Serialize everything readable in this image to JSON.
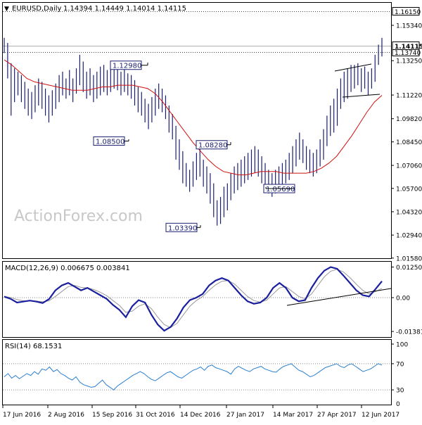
{
  "header": {
    "symbol_label": "EURUSD,Daily",
    "ohlc_text": "1.14394 1.14449 1.14014 1.14115"
  },
  "watermark": "ActionForex.com",
  "chart_data": [
    {
      "type": "line",
      "panel": "price",
      "title": "EURUSD,Daily",
      "subtitle": "1.14394 1.14449 1.14014 1.14115",
      "x_ticks": [
        "17 Jun 2016",
        "2 Aug 2016",
        "15 Sep 2016",
        "31 Oct 2016",
        "14 Dec 2016",
        "27 Jan 2017",
        "14 Mar 2017",
        "27 Apr 2017",
        "12 Jun 2017"
      ],
      "y_ticks": [
        "1.15340",
        "1.13250",
        "1.11220",
        "1.09820",
        "1.08450",
        "1.07060",
        "1.05700",
        "1.04320",
        "1.02940",
        "1.01580"
      ],
      "ylim": [
        1.0158,
        1.168
      ],
      "current_price": "1.14115",
      "horizontal_levels": [
        {
          "label": "1.16150",
          "value": 1.1615,
          "style": "dotted"
        },
        {
          "label": "1.13740",
          "value": 1.1374,
          "style": "dotted"
        }
      ],
      "annotations": [
        {
          "label": "1.12980",
          "value": 1.1298
        },
        {
          "label": "1.08500",
          "value": 1.085
        },
        {
          "label": "1.03390",
          "value": 1.0339
        },
        {
          "label": "1.08280",
          "value": 1.0828
        },
        {
          "label": "1.05690",
          "value": 1.0569
        }
      ],
      "series": [
        {
          "type": "bar",
          "color": "#1a1f6e",
          "bars": [
            [
              1.137,
              1.146
            ],
            [
              1.122,
              1.143
            ],
            [
              1.1,
              1.131
            ],
            [
              1.108,
              1.128
            ],
            [
              1.112,
              1.126
            ],
            [
              1.108,
              1.124
            ],
            [
              1.104,
              1.12
            ],
            [
              1.1,
              1.116
            ],
            [
              1.098,
              1.114
            ],
            [
              1.102,
              1.118
            ],
            [
              1.106,
              1.122
            ],
            [
              1.104,
              1.12
            ],
            [
              1.1,
              1.116
            ],
            [
              1.096,
              1.112
            ],
            [
              1.1,
              1.115
            ],
            [
              1.104,
              1.119
            ],
            [
              1.108,
              1.124
            ],
            [
              1.112,
              1.126
            ],
            [
              1.11,
              1.122
            ],
            [
              1.112,
              1.127
            ],
            [
              1.108,
              1.122
            ],
            [
              1.113,
              1.128
            ],
            [
              1.118,
              1.136
            ],
            [
              1.114,
              1.132
            ],
            [
              1.11,
              1.126
            ],
            [
              1.112,
              1.128
            ],
            [
              1.108,
              1.124
            ],
            [
              1.11,
              1.126
            ],
            [
              1.112,
              1.129
            ],
            [
              1.114,
              1.13
            ],
            [
              1.112,
              1.127
            ],
            [
              1.114,
              1.129
            ],
            [
              1.116,
              1.13
            ],
            [
              1.115,
              1.128
            ],
            [
              1.112,
              1.126
            ],
            [
              1.114,
              1.128
            ],
            [
              1.112,
              1.125
            ],
            [
              1.11,
              1.124
            ],
            [
              1.106,
              1.121
            ],
            [
              1.102,
              1.117
            ],
            [
              1.1,
              1.114
            ],
            [
              1.096,
              1.11
            ],
            [
              1.092,
              1.107
            ],
            [
              1.096,
              1.111
            ],
            [
              1.1,
              1.116
            ],
            [
              1.104,
              1.119
            ],
            [
              1.102,
              1.116
            ],
            [
              1.098,
              1.112
            ],
            [
              1.09,
              1.106
            ],
            [
              1.086,
              1.101
            ],
            [
              1.074,
              1.094
            ],
            [
              1.068,
              1.086
            ],
            [
              1.06,
              1.079
            ],
            [
              1.058,
              1.072
            ],
            [
              1.055,
              1.068
            ],
            [
              1.058,
              1.073
            ],
            [
              1.062,
              1.078
            ],
            [
              1.064,
              1.082
            ],
            [
              1.058,
              1.074
            ],
            [
              1.054,
              1.07
            ],
            [
              1.048,
              1.066
            ],
            [
              1.04,
              1.06
            ],
            [
              1.035,
              1.05
            ],
            [
              1.036,
              1.052
            ],
            [
              1.04,
              1.058
            ],
            [
              1.044,
              1.06
            ],
            [
              1.05,
              1.066
            ],
            [
              1.054,
              1.07
            ],
            [
              1.056,
              1.072
            ],
            [
              1.058,
              1.074
            ],
            [
              1.06,
              1.076
            ],
            [
              1.062,
              1.078
            ],
            [
              1.064,
              1.08
            ],
            [
              1.066,
              1.082
            ],
            [
              1.064,
              1.08
            ],
            [
              1.06,
              1.076
            ],
            [
              1.056,
              1.072
            ],
            [
              1.054,
              1.068
            ],
            [
              1.052,
              1.066
            ],
            [
              1.054,
              1.068
            ],
            [
              1.056,
              1.07
            ],
            [
              1.058,
              1.072
            ],
            [
              1.06,
              1.074
            ],
            [
              1.062,
              1.078
            ],
            [
              1.066,
              1.082
            ],
            [
              1.07,
              1.086
            ],
            [
              1.074,
              1.09
            ],
            [
              1.072,
              1.086
            ],
            [
              1.068,
              1.082
            ],
            [
              1.066,
              1.08
            ],
            [
              1.064,
              1.078
            ],
            [
              1.066,
              1.08
            ],
            [
              1.07,
              1.086
            ],
            [
              1.074,
              1.092
            ],
            [
              1.082,
              1.1
            ],
            [
              1.088,
              1.106
            ],
            [
              1.09,
              1.11
            ],
            [
              1.094,
              1.116
            ],
            [
              1.104,
              1.122
            ],
            [
              1.108,
              1.126
            ],
            [
              1.11,
              1.128
            ],
            [
              1.114,
              1.13
            ],
            [
              1.116,
              1.13
            ],
            [
              1.118,
              1.131
            ],
            [
              1.114,
              1.128
            ],
            [
              1.116,
              1.129
            ],
            [
              1.112,
              1.126
            ],
            [
              1.116,
              1.128
            ],
            [
              1.12,
              1.136
            ],
            [
              1.13,
              1.142
            ],
            [
              1.135,
              1.146
            ]
          ]
        },
        {
          "name": "",
          "type": "line",
          "color": "#d01010",
          "values": [
            1.133,
            1.13,
            1.126,
            1.122,
            1.12,
            1.119,
            1.118,
            1.117,
            1.116,
            1.115,
            1.115,
            1.115,
            1.116,
            1.117,
            1.117,
            1.118,
            1.118,
            1.118,
            1.117,
            1.116,
            1.113,
            1.108,
            1.102,
            1.096,
            1.09,
            1.084,
            1.079,
            1.074,
            1.07,
            1.067,
            1.066,
            1.065,
            1.065,
            1.066,
            1.067,
            1.067,
            1.067,
            1.066,
            1.066,
            1.066,
            1.066,
            1.067,
            1.069,
            1.072,
            1.076,
            1.082,
            1.088,
            1.095,
            1.102,
            1.108,
            1.112
          ]
        }
      ]
    },
    {
      "type": "line",
      "panel": "macd",
      "title": "MACD(12,26,9) 0.006675 0.003841",
      "y_ticks": [
        "0.012509",
        "0.00",
        "-0.013813"
      ],
      "ylim": [
        -0.0145,
        0.0132
      ],
      "series": [
        {
          "type": "line",
          "color": "#1a1f9e",
          "values": [
            0.0004,
            -0.0005,
            -0.002,
            -0.0016,
            -0.0012,
            -0.0016,
            -0.0022,
            -0.0006,
            0.003,
            0.005,
            0.006,
            0.0045,
            0.003,
            0.004,
            0.0025,
            0.001,
            -0.0005,
            -0.003,
            -0.005,
            -0.008,
            -0.0035,
            -0.001,
            -0.002,
            -0.007,
            -0.011,
            -0.0135,
            -0.012,
            -0.0085,
            -0.004,
            -0.001,
            0.0,
            0.0015,
            0.005,
            0.007,
            0.008,
            0.007,
            0.004,
            0.001,
            -0.0015,
            -0.0025,
            -0.002,
            0.0,
            0.004,
            0.006,
            0.004,
            0.0,
            -0.0015,
            -0.001,
            0.004,
            0.008,
            0.011,
            0.0125,
            0.0118,
            0.009,
            0.006,
            0.003,
            0.001,
            0.0005,
            0.0035,
            0.0067
          ]
        },
        {
          "type": "line",
          "color": "#999999",
          "values": [
            0.0005,
            0.0001,
            -0.0008,
            -0.0013,
            -0.0013,
            -0.0014,
            -0.0017,
            -0.0013,
            0.0005,
            0.0025,
            0.0045,
            0.005,
            0.0042,
            0.004,
            0.0033,
            0.0022,
            0.0008,
            -0.0012,
            -0.0032,
            -0.006,
            -0.0055,
            -0.0035,
            -0.0025,
            -0.0045,
            -0.008,
            -0.011,
            -0.0122,
            -0.0105,
            -0.007,
            -0.0035,
            -0.0012,
            0.0005,
            0.003,
            0.0052,
            0.0067,
            0.007,
            0.0055,
            0.003,
            0.0005,
            -0.0012,
            -0.0018,
            -0.001,
            0.0015,
            0.004,
            0.0045,
            0.0025,
            0.0005,
            -0.0005,
            0.0015,
            0.005,
            0.0085,
            0.0108,
            0.0116,
            0.0105,
            0.0082,
            0.0055,
            0.003,
            0.0015,
            0.0025,
            0.0038
          ]
        }
      ]
    },
    {
      "type": "line",
      "panel": "rsi",
      "title": "RSI(14) 68.1531",
      "y_ticks": [
        "100",
        "70",
        "30",
        "0"
      ],
      "ylim": [
        0,
        100
      ],
      "series": [
        {
          "type": "line",
          "color": "#2a7fd0",
          "values": [
            50,
            55,
            48,
            52,
            47,
            51,
            55,
            52,
            58,
            54,
            62,
            60,
            65,
            58,
            61,
            55,
            52,
            48,
            45,
            50,
            42,
            38,
            36,
            34,
            35,
            40,
            45,
            38,
            34,
            30,
            36,
            40,
            44,
            48,
            52,
            55,
            58,
            55,
            50,
            46,
            44,
            48,
            52,
            56,
            58,
            54,
            50,
            48,
            52,
            56,
            60,
            62,
            65,
            60,
            66,
            68,
            64,
            62,
            60,
            58,
            54,
            62,
            66,
            63,
            60,
            58,
            62,
            64,
            66,
            62,
            60,
            58,
            57,
            62,
            66,
            68,
            70,
            65,
            60,
            58,
            54,
            50,
            52,
            56,
            60,
            64,
            66,
            68,
            70,
            66,
            64,
            68,
            70,
            66,
            62,
            58,
            60,
            62,
            66,
            70,
            68
          ]
        }
      ]
    }
  ]
}
